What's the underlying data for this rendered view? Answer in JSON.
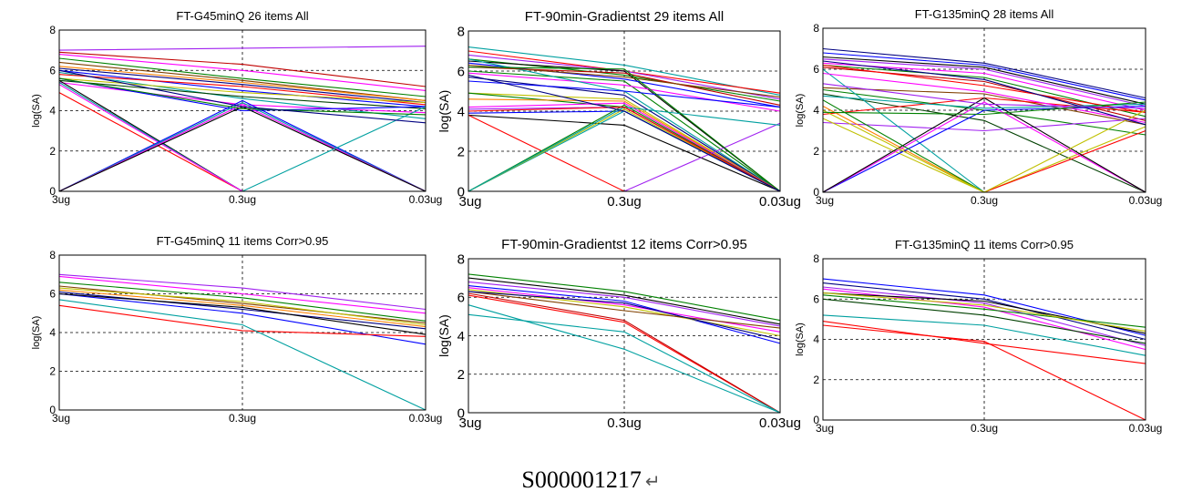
{
  "caption": "S000001217",
  "caption_mark": "↵",
  "chart_data": [
    {
      "type": "line",
      "title": "FT-G45minQ 26 items All",
      "ylabel": "log(SA)",
      "categories": [
        "3ug",
        "0.3ug",
        "0.03ug"
      ],
      "y_ticks": [
        "0",
        "2",
        "4",
        "6",
        "8"
      ],
      "ylim": [
        0,
        8
      ],
      "grid": "dashed at 0.3ug and y=2,4,6",
      "series": [
        {
          "color": "#a020f0",
          "values": [
            7.0,
            7.1,
            7.2
          ]
        },
        {
          "color": "#c00000",
          "values": [
            6.9,
            6.3,
            5.2
          ]
        },
        {
          "color": "#ff00ff",
          "values": [
            6.8,
            6.0,
            5.0
          ]
        },
        {
          "color": "#008000",
          "values": [
            6.6,
            5.6,
            4.7
          ]
        },
        {
          "color": "#804000",
          "values": [
            6.4,
            5.5,
            4.5
          ]
        },
        {
          "color": "#ff8000",
          "values": [
            6.2,
            5.4,
            4.5
          ]
        },
        {
          "color": "#000080",
          "values": [
            6.1,
            5.3,
            4.4
          ]
        },
        {
          "color": "#0000ff",
          "values": [
            6.0,
            5.0,
            4.2
          ]
        },
        {
          "color": "#00a0a0",
          "values": [
            5.9,
            4.6,
            3.6
          ]
        },
        {
          "color": "#ff0000",
          "values": [
            5.8,
            5.2,
            4.3
          ]
        },
        {
          "color": "#c0c000",
          "values": [
            5.6,
            4.9,
            4.4
          ]
        },
        {
          "color": "#004000",
          "values": [
            5.5,
            4.7,
            4.1
          ]
        },
        {
          "color": "#ff00ff",
          "values": [
            5.4,
            4.3,
            3.9
          ]
        },
        {
          "color": "#ff0000",
          "values": [
            4.9,
            0,
            0
          ]
        },
        {
          "color": "#0000ff",
          "values": [
            5.6,
            4.0,
            4.2
          ]
        },
        {
          "color": "#000000",
          "values": [
            5.5,
            0,
            0
          ]
        },
        {
          "color": "#00a0a0",
          "values": [
            5.4,
            0,
            0
          ]
        },
        {
          "color": "#ff00ff",
          "values": [
            5.3,
            0,
            0
          ]
        },
        {
          "color": "#0000ff",
          "values": [
            0,
            4.5,
            0
          ]
        },
        {
          "color": "#00a0a0",
          "values": [
            0,
            4.4,
            0
          ]
        },
        {
          "color": "#ff00ff",
          "values": [
            0,
            4.3,
            0
          ]
        },
        {
          "color": "#000000",
          "values": [
            0,
            4.2,
            0
          ]
        },
        {
          "color": "#00a0a0",
          "values": [
            0,
            0,
            4.2
          ]
        },
        {
          "color": "#a020f0",
          "values": [
            0,
            0,
            0
          ]
        },
        {
          "color": "#008000",
          "values": [
            5.6,
            4.1,
            3.8
          ]
        },
        {
          "color": "#000080",
          "values": [
            6.0,
            4.2,
            3.4
          ]
        }
      ]
    },
    {
      "type": "line",
      "title": "FT-90min-Gradientst 29 items All",
      "ylabel": "log(SA)",
      "categories": [
        "3ug",
        "0.3ug",
        "0.03ug"
      ],
      "y_ticks": [
        "0",
        "2",
        "4",
        "6",
        "8"
      ],
      "ylim": [
        0,
        8
      ],
      "grid": "dashed at 0.3ug and y=2,4,6",
      "series": [
        {
          "color": "#00a0a0",
          "values": [
            7.2,
            6.3,
            4.8
          ]
        },
        {
          "color": "#ff0000",
          "values": [
            7.0,
            6.0,
            4.9
          ]
        },
        {
          "color": "#a020f0",
          "values": [
            6.8,
            6.0,
            4.6
          ]
        },
        {
          "color": "#008000",
          "values": [
            6.6,
            5.8,
            4.5
          ]
        },
        {
          "color": "#000000",
          "values": [
            6.5,
            6.0,
            0
          ]
        },
        {
          "color": "#0000ff",
          "values": [
            6.4,
            5.6,
            4.2
          ]
        },
        {
          "color": "#c00000",
          "values": [
            6.2,
            5.9,
            4.3
          ]
        },
        {
          "color": "#008000",
          "values": [
            6.0,
            5.5,
            0
          ]
        },
        {
          "color": "#ff00ff",
          "values": [
            5.9,
            5.3,
            4.0
          ]
        },
        {
          "color": "#00a0a0",
          "values": [
            6.6,
            5.0,
            0
          ]
        },
        {
          "color": "#000080",
          "values": [
            5.7,
            4.8,
            0
          ]
        },
        {
          "color": "#c0c000",
          "values": [
            4.9,
            4.6,
            0
          ]
        },
        {
          "color": "#008000",
          "values": [
            4.9,
            4.2,
            0
          ]
        },
        {
          "color": "#ff8000",
          "values": [
            4.6,
            4.5,
            0
          ]
        },
        {
          "color": "#ff00ff",
          "values": [
            4.2,
            4.4,
            0
          ]
        },
        {
          "color": "#a020f0",
          "values": [
            4.1,
            4.2,
            0
          ]
        },
        {
          "color": "#0000ff",
          "values": [
            3.9,
            4.0,
            0
          ]
        },
        {
          "color": "#000000",
          "values": [
            3.8,
            3.3,
            0
          ]
        },
        {
          "color": "#ff0000",
          "values": [
            3.8,
            0,
            0
          ]
        },
        {
          "color": "#00a0a0",
          "values": [
            0,
            4.0,
            0
          ]
        },
        {
          "color": "#008000",
          "values": [
            0,
            4.3,
            0
          ]
        },
        {
          "color": "#c0c000",
          "values": [
            0,
            4.1,
            0
          ]
        },
        {
          "color": "#a020f0",
          "values": [
            0,
            0,
            3.4
          ]
        },
        {
          "color": "#00a0a0",
          "values": [
            0,
            4.2,
            3.3
          ]
        },
        {
          "color": "#0000ff",
          "values": [
            5.5,
            5.0,
            4.2
          ]
        },
        {
          "color": "#804000",
          "values": [
            6.3,
            5.7,
            4.7
          ]
        },
        {
          "color": "#ff0000",
          "values": [
            4.0,
            4.2,
            0
          ]
        },
        {
          "color": "#008000",
          "values": [
            6.2,
            6.1,
            0
          ]
        },
        {
          "color": "#000080",
          "values": [
            5.8,
            4.0,
            0
          ]
        }
      ]
    },
    {
      "type": "line",
      "title": "FT-G135minQ  28 items All",
      "ylabel": "log(SA)",
      "categories": [
        "3ug",
        "0.3ug",
        "0.03ug"
      ],
      "y_ticks": [
        "0",
        "2",
        "4",
        "6",
        "8"
      ],
      "ylim": [
        0,
        8
      ],
      "grid": "dashed at 0.3ug and y=2,4,6",
      "series": [
        {
          "color": "#000080",
          "values": [
            7.0,
            6.3,
            4.6
          ]
        },
        {
          "color": "#0000ff",
          "values": [
            6.8,
            6.2,
            4.5
          ]
        },
        {
          "color": "#000000",
          "values": [
            6.6,
            6.1,
            4.3
          ]
        },
        {
          "color": "#a020f0",
          "values": [
            6.5,
            6.0,
            4.2
          ]
        },
        {
          "color": "#ff00ff",
          "values": [
            6.3,
            5.8,
            4.0
          ]
        },
        {
          "color": "#008000",
          "values": [
            6.2,
            5.6,
            3.7
          ]
        },
        {
          "color": "#c00000",
          "values": [
            6.1,
            5.4,
            3.5
          ]
        },
        {
          "color": "#ff0000",
          "values": [
            6.2,
            5.2,
            3.9
          ]
        },
        {
          "color": "#804000",
          "values": [
            5.1,
            4.8,
            3.3
          ]
        },
        {
          "color": "#008000",
          "values": [
            5.0,
            4.0,
            2.8
          ]
        },
        {
          "color": "#004000",
          "values": [
            4.8,
            3.5,
            0
          ]
        },
        {
          "color": "#ff0000",
          "values": [
            3.8,
            4.6,
            3.9
          ]
        },
        {
          "color": "#a020f0",
          "values": [
            3.4,
            3.0,
            3.6
          ]
        },
        {
          "color": "#c0c000",
          "values": [
            3.6,
            0,
            3.2
          ]
        },
        {
          "color": "#ff8000",
          "values": [
            4.2,
            0,
            0
          ]
        },
        {
          "color": "#00a0a0",
          "values": [
            6.0,
            0,
            0
          ]
        },
        {
          "color": "#ff0000",
          "values": [
            0,
            0,
            3.0
          ]
        },
        {
          "color": "#0000ff",
          "values": [
            0,
            4.0,
            4.2
          ]
        },
        {
          "color": "#ff00ff",
          "values": [
            0,
            4.4,
            0
          ]
        },
        {
          "color": "#000000",
          "values": [
            0,
            4.6,
            0
          ]
        },
        {
          "color": "#008000",
          "values": [
            4.5,
            0,
            0
          ]
        },
        {
          "color": "#0000ff",
          "values": [
            0,
            0,
            0
          ]
        },
        {
          "color": "#c0c000",
          "values": [
            4.0,
            0,
            4.0
          ]
        },
        {
          "color": "#00a0a0",
          "values": [
            4.7,
            4.1,
            4.3
          ]
        },
        {
          "color": "#ff00ff",
          "values": [
            5.8,
            4.9,
            3.4
          ]
        },
        {
          "color": "#000080",
          "values": [
            6.4,
            5.5,
            3.3
          ]
        },
        {
          "color": "#008000",
          "values": [
            3.9,
            3.8,
            4.4
          ]
        },
        {
          "color": "#a020f0",
          "values": [
            5.3,
            4.3,
            4.1
          ]
        }
      ]
    },
    {
      "type": "line",
      "title": "FT-G45minQ 11 items Corr>0.95",
      "ylabel": "log(SA)",
      "categories": [
        "3ug",
        "0.3ug",
        "0.03ug"
      ],
      "y_ticks": [
        "0",
        "2",
        "4",
        "6",
        "8"
      ],
      "ylim": [
        0,
        8
      ],
      "grid": "dashed at 0.3ug and y=2,4,6",
      "series": [
        {
          "color": "#a020f0",
          "values": [
            7.0,
            6.3,
            5.2
          ]
        },
        {
          "color": "#ff00ff",
          "values": [
            6.9,
            6.0,
            5.0
          ]
        },
        {
          "color": "#008000",
          "values": [
            6.6,
            5.8,
            4.6
          ]
        },
        {
          "color": "#804000",
          "values": [
            6.4,
            5.5,
            4.5
          ]
        },
        {
          "color": "#ff8000",
          "values": [
            6.2,
            5.4,
            4.3
          ]
        },
        {
          "color": "#000080",
          "values": [
            6.1,
            5.2,
            4.2
          ]
        },
        {
          "color": "#0000ff",
          "values": [
            6.0,
            5.0,
            3.4
          ]
        },
        {
          "color": "#c0c000",
          "values": [
            6.3,
            5.6,
            4.4
          ]
        },
        {
          "color": "#000000",
          "values": [
            6.0,
            5.3,
            3.9
          ]
        },
        {
          "color": "#ff0000",
          "values": [
            5.4,
            4.1,
            3.8
          ]
        },
        {
          "color": "#00a0a0",
          "values": [
            5.7,
            4.4,
            0
          ]
        }
      ]
    },
    {
      "type": "line",
      "title": "FT-90min-Gradientst 12 items Corr>0.95",
      "ylabel": "log(SA)",
      "categories": [
        "3ug",
        "0.3ug",
        "0.03ug"
      ],
      "y_ticks": [
        "0",
        "2",
        "4",
        "6",
        "8"
      ],
      "ylim": [
        0,
        8
      ],
      "grid": "dashed at 0.3ug and y=2,4,6",
      "series": [
        {
          "color": "#008000",
          "values": [
            7.2,
            6.3,
            4.8
          ]
        },
        {
          "color": "#000000",
          "values": [
            7.0,
            6.1,
            4.6
          ]
        },
        {
          "color": "#a020f0",
          "values": [
            6.8,
            6.0,
            4.5
          ]
        },
        {
          "color": "#0000ff",
          "values": [
            6.6,
            5.8,
            3.6
          ]
        },
        {
          "color": "#ff00ff",
          "values": [
            6.5,
            5.6,
            4.2
          ]
        },
        {
          "color": "#c0c000",
          "values": [
            6.4,
            5.5,
            4.0
          ]
        },
        {
          "color": "#804000",
          "values": [
            6.3,
            5.3,
            4.4
          ]
        },
        {
          "color": "#ff0000",
          "values": [
            6.1,
            4.7,
            0
          ]
        },
        {
          "color": "#c00000",
          "values": [
            6.2,
            4.8,
            0
          ]
        },
        {
          "color": "#00a0a0",
          "values": [
            5.6,
            3.3,
            0
          ]
        },
        {
          "color": "#00a0a0",
          "values": [
            5.1,
            4.2,
            0
          ]
        },
        {
          "color": "#000080",
          "values": [
            6.3,
            5.7,
            3.8
          ]
        }
      ]
    },
    {
      "type": "line",
      "title": "FT-G135minQ 11 items Corr>0.95",
      "ylabel": "log(SA)",
      "categories": [
        "3ug",
        "0.3ug",
        "0.03ug"
      ],
      "y_ticks": [
        "0",
        "2",
        "4",
        "6",
        "8"
      ],
      "ylim": [
        0,
        8
      ],
      "grid": "dashed at 0.3ug and y=2,4,6",
      "series": [
        {
          "color": "#0000ff",
          "values": [
            7.0,
            6.2,
            4.2
          ]
        },
        {
          "color": "#000080",
          "values": [
            6.8,
            6.0,
            4.0
          ]
        },
        {
          "color": "#a020f0",
          "values": [
            6.6,
            5.8,
            3.7
          ]
        },
        {
          "color": "#ff00ff",
          "values": [
            6.5,
            5.6,
            3.5
          ]
        },
        {
          "color": "#000000",
          "values": [
            6.3,
            5.9,
            4.3
          ]
        },
        {
          "color": "#008000",
          "values": [
            6.2,
            5.5,
            4.6
          ]
        },
        {
          "color": "#004000",
          "values": [
            6.0,
            5.2,
            3.8
          ]
        },
        {
          "color": "#00a0a0",
          "values": [
            5.2,
            4.7,
            3.2
          ]
        },
        {
          "color": "#ff0000",
          "values": [
            4.9,
            3.8,
            2.8
          ]
        },
        {
          "color": "#ff0000",
          "values": [
            4.7,
            3.9,
            0
          ]
        },
        {
          "color": "#c0c000",
          "values": [
            6.3,
            5.7,
            4.4
          ]
        }
      ]
    }
  ]
}
